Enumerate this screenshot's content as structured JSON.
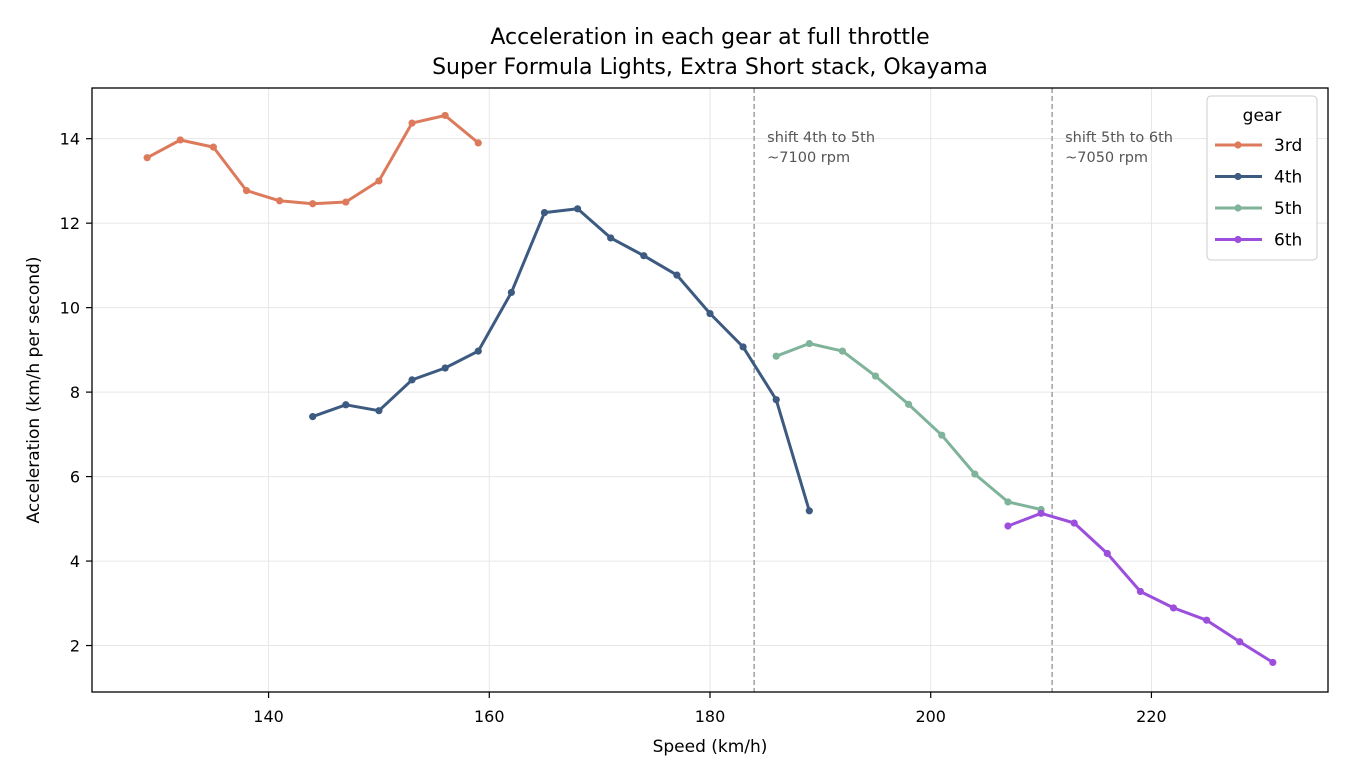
{
  "chart_data": {
    "type": "line",
    "title": "Acceleration in each gear at full throttle",
    "subtitle": "Super Formula Lights, Extra Short stack, Okayama",
    "xlabel": "Speed (km/h)",
    "ylabel": "Acceleration (km/h per second)",
    "xlim": [
      124,
      236
    ],
    "ylim": [
      0.9,
      15.2
    ],
    "xticks": [
      140,
      160,
      180,
      200,
      220
    ],
    "yticks": [
      2,
      4,
      6,
      8,
      10,
      12,
      14
    ],
    "grid": true,
    "legend": {
      "title": "gear",
      "placement": "top-right"
    },
    "series": [
      {
        "name": "3rd",
        "color": "#dd7a5c",
        "x": [
          129,
          132,
          135,
          138,
          141,
          144,
          147,
          150,
          153,
          156,
          159
        ],
        "y": [
          13.55,
          13.97,
          13.8,
          12.77,
          12.53,
          12.46,
          12.5,
          13.0,
          14.37,
          14.55,
          13.9
        ]
      },
      {
        "name": "4th",
        "color": "#3d5a80",
        "x": [
          144,
          147,
          150,
          153,
          156,
          159,
          162,
          165,
          168,
          171,
          174,
          177,
          180,
          183,
          186,
          189
        ],
        "y": [
          7.42,
          7.7,
          7.56,
          8.29,
          8.57,
          8.97,
          10.36,
          12.25,
          12.34,
          11.65,
          11.23,
          10.77,
          9.86,
          9.07,
          7.82,
          5.19
        ]
      },
      {
        "name": "5th",
        "color": "#7fb39a",
        "x": [
          186,
          189,
          192,
          195,
          198,
          201,
          204,
          207,
          210
        ],
        "y": [
          8.85,
          9.15,
          8.97,
          8.38,
          7.71,
          6.98,
          6.06,
          5.4,
          5.22
        ]
      },
      {
        "name": "6th",
        "color": "#9b4fdc",
        "x": [
          207,
          210,
          213,
          216,
          219,
          222,
          225,
          228,
          231
        ],
        "y": [
          4.83,
          5.13,
          4.9,
          4.18,
          3.28,
          2.89,
          2.6,
          2.09,
          1.6
        ]
      }
    ],
    "annotations": [
      {
        "x": 184,
        "line1": "shift 4th to 5th",
        "line2": "~7100 rpm"
      },
      {
        "x": 211,
        "line1": "shift 5th to 6th",
        "line2": "~7050 rpm"
      }
    ]
  }
}
